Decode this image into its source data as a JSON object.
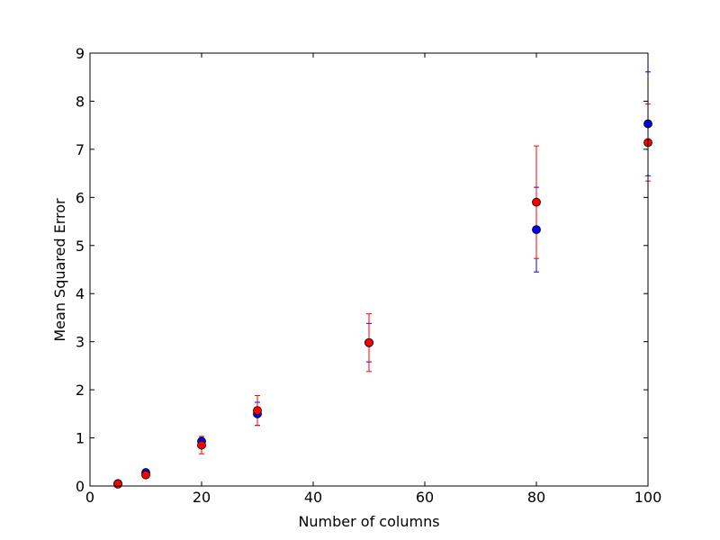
{
  "chart_data": {
    "type": "scatter",
    "xlabel": "Number of columns",
    "ylabel": "Mean Squared Error",
    "xlim": [
      0,
      100
    ],
    "ylim": [
      0,
      9
    ],
    "xticks": [
      0,
      20,
      40,
      60,
      80,
      100
    ],
    "yticks": [
      0,
      1,
      2,
      3,
      4,
      5,
      6,
      7,
      8,
      9
    ],
    "xtick_labels": [
      "0",
      "20",
      "40",
      "60",
      "80",
      "100"
    ],
    "ytick_labels": [
      "0",
      "1",
      "2",
      "3",
      "4",
      "5",
      "6",
      "7",
      "8",
      "9"
    ],
    "grid": false,
    "series": [
      {
        "color": "#0000ff",
        "x": [
          5,
          10,
          20,
          30,
          50,
          80,
          100
        ],
        "y": [
          0.05,
          0.28,
          0.93,
          1.5,
          2.98,
          5.33,
          7.53
        ],
        "error": [
          0.02,
          0.05,
          0.1,
          0.24,
          0.4,
          0.88,
          1.08
        ]
      },
      {
        "color": "#ff0000",
        "x": [
          5,
          10,
          20,
          30,
          50,
          80,
          100
        ],
        "y": [
          0.04,
          0.23,
          0.85,
          1.57,
          2.98,
          5.9,
          7.14
        ],
        "error": [
          0.02,
          0.05,
          0.18,
          0.31,
          0.6,
          1.17,
          0.8
        ]
      }
    ]
  }
}
